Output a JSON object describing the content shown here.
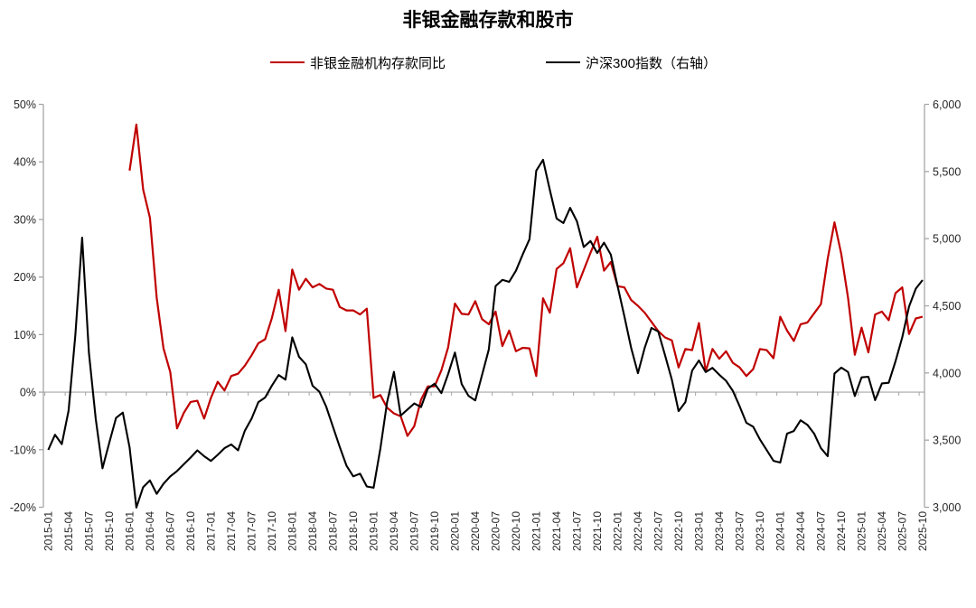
{
  "title": "非银金融存款和股市",
  "legend": [
    {
      "label": "非银金融机构存款同比",
      "color": "#C00000"
    },
    {
      "label": "沪深300指数（右轴）",
      "color": "#000000"
    }
  ],
  "chart_data": {
    "type": "line",
    "x_start": "2015-01",
    "x_end": "2025-10",
    "x_tick_interval_months": 3,
    "left_axis": {
      "min": -20,
      "max": 50,
      "step": 10,
      "unit": "%",
      "labels": [
        "50%",
        "40%",
        "30%",
        "20%",
        "10%",
        "0%",
        "-10%",
        "-20%"
      ]
    },
    "right_axis": {
      "min": 3000,
      "max": 6000,
      "step": 500,
      "labels": [
        "6,000",
        "5,500",
        "5,000",
        "4,500",
        "4,000",
        "3,500",
        "3,000"
      ]
    },
    "axis_color": "#A6A6A6",
    "series": [
      {
        "name": "非银金融机构存款同比",
        "axis": "left",
        "color": "#C00000",
        "start_month": "2016-01",
        "values": [
          38.5,
          46.5,
          35.2,
          30.3,
          16.4,
          7.6,
          3.5,
          -6.3,
          -3.6,
          -1.7,
          -1.5,
          -4.6,
          -1.0,
          1.8,
          0.3,
          2.8,
          3.2,
          4.6,
          6.4,
          8.5,
          9.2,
          12.9,
          17.8,
          10.6,
          21.3,
          17.8,
          19.7,
          18.2,
          18.8,
          18.0,
          17.8,
          14.8,
          14.2,
          14.2,
          13.5,
          14.5,
          -1.0,
          -0.5,
          -2.7,
          -3.7,
          -4.2,
          -7.6,
          -5.9,
          -1.3,
          1.0,
          1.0,
          3.8,
          7.8,
          15.4,
          13.6,
          13.5,
          15.8,
          12.7,
          11.8,
          14.0,
          8.0,
          10.7,
          7.1,
          7.7,
          7.6,
          2.8,
          16.3,
          13.8,
          21.4,
          22.4,
          25.0,
          18.2,
          21.2,
          24.2,
          27.0,
          21.1,
          22.6,
          18.4,
          18.2,
          16.0,
          15.0,
          13.8,
          12.2,
          10.6,
          9.5,
          9.0,
          4.3,
          7.5,
          7.3,
          12.0,
          3.6,
          7.5,
          5.8,
          7.1,
          5.1,
          4.3,
          2.8,
          4.0,
          7.5,
          7.3,
          5.9,
          13.1,
          10.7,
          8.9,
          11.8,
          12.1,
          13.7,
          15.3,
          23.2,
          29.5,
          24.0,
          16.4,
          6.5,
          11.2,
          6.9,
          13.5,
          14.0,
          12.5,
          17.2,
          18.2,
          10.1,
          12.8,
          13.1
        ]
      },
      {
        "name": "沪深300指数（右轴）",
        "axis": "right",
        "color": "#000000",
        "start_month": "2015-01",
        "values": [
          3427,
          3540,
          3470,
          3720,
          4285,
          5007,
          4150,
          3660,
          3290,
          3480,
          3665,
          3705,
          3445,
          2998,
          3150,
          3200,
          3100,
          3175,
          3230,
          3270,
          3320,
          3370,
          3424,
          3380,
          3345,
          3390,
          3440,
          3468,
          3424,
          3570,
          3660,
          3783,
          3817,
          3906,
          3985,
          3950,
          4265,
          4120,
          4065,
          3905,
          3860,
          3750,
          3600,
          3450,
          3310,
          3230,
          3250,
          3155,
          3145,
          3437,
          3784,
          4008,
          3683,
          3728,
          3773,
          3746,
          3884,
          3920,
          3850,
          3992,
          4152,
          3917,
          3830,
          3796,
          3985,
          4175,
          4647,
          4693,
          4678,
          4761,
          4882,
          4996,
          5506,
          5587,
          5364,
          5150,
          5116,
          5229,
          5129,
          4938,
          4982,
          4893,
          4970,
          4881,
          4647,
          4422,
          4187,
          3998,
          4187,
          4335,
          4308,
          4132,
          3951,
          3716,
          3783,
          4018,
          4093,
          4007,
          4038,
          3987,
          3942,
          3867,
          3753,
          3629,
          3600,
          3505,
          3426,
          3346,
          3333,
          3548,
          3568,
          3648,
          3614,
          3548,
          3440,
          3381,
          3996,
          4040,
          4007,
          3828,
          3967,
          3972,
          3798,
          3922,
          3927,
          4086,
          4265,
          4494,
          4628,
          4692
        ]
      }
    ]
  }
}
